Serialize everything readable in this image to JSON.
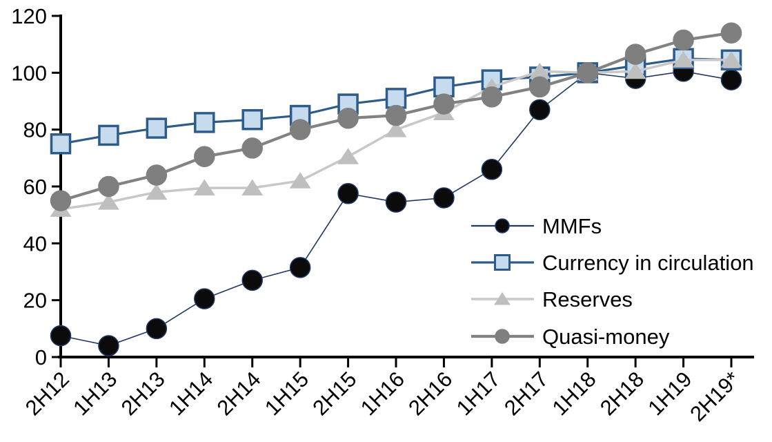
{
  "chart_data": {
    "type": "line",
    "categories": [
      "2H12",
      "1H13",
      "2H13",
      "1H14",
      "2H14",
      "1H15",
      "2H15",
      "1H16",
      "2H16",
      "1H17",
      "2H17",
      "1H18",
      "2H18",
      "1H19",
      "2H19*"
    ],
    "series": [
      {
        "name": "MMFs",
        "marker": "circle",
        "color_line": "#1f3864",
        "color_fill": "#0b0b0b",
        "color_stroke": "#1f3864",
        "values": [
          7.5,
          4,
          10,
          20.5,
          27,
          31.5,
          57.5,
          54.5,
          56,
          66,
          87,
          100,
          98,
          100.5,
          97.5
        ]
      },
      {
        "name": "Currency in circulation",
        "marker": "square",
        "color_line": "#2e5c8a",
        "color_fill": "#c7dbee",
        "color_stroke": "#2e5c8a",
        "values": [
          75,
          78,
          80.5,
          82.5,
          83.5,
          85,
          89,
          91,
          95,
          97.5,
          98.5,
          100,
          102.5,
          105,
          104.5
        ]
      },
      {
        "name": "Reserves",
        "marker": "triangle",
        "color_line": "#c8c8c8",
        "color_fill": "#bfbfbf",
        "color_stroke": "#bfbfbf",
        "values": [
          52,
          54.5,
          58,
          59.5,
          59.5,
          62,
          70.5,
          80,
          86,
          95,
          100.5,
          100,
          100.5,
          104.5,
          104.5
        ]
      },
      {
        "name": "Quasi-money",
        "marker": "circle",
        "color_line": "#828282",
        "color_fill": "#7f7f7f",
        "color_stroke": "#7f7f7f",
        "values": [
          55,
          60,
          64,
          70.5,
          73.5,
          80,
          84,
          85,
          89,
          91.5,
          95,
          100,
          106.5,
          111.5,
          114
        ]
      }
    ],
    "ylim": [
      0,
      120
    ],
    "ytick_step": 20,
    "ytick_labels": [
      "0",
      "20",
      "40",
      "60",
      "80",
      "100",
      "120"
    ],
    "xlabel": "",
    "ylabel": "",
    "grid": false,
    "legend": {
      "position": "inside-right"
    },
    "axis_color": "#000000",
    "background": "#ffffff"
  }
}
